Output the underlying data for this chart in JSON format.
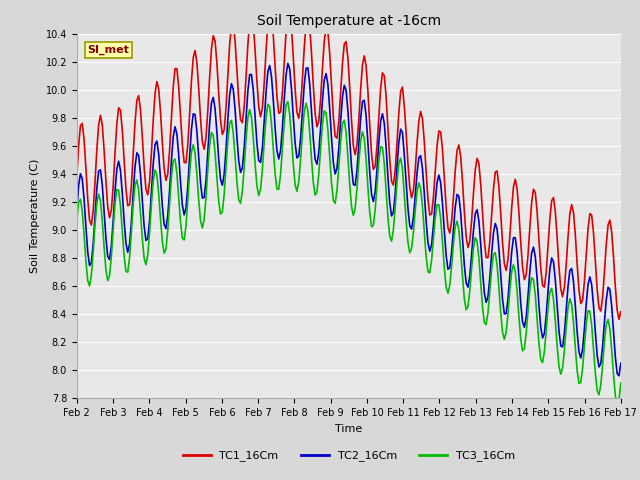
{
  "title": "Soil Temperature at -16cm",
  "xlabel": "Time",
  "ylabel": "Soil Temperature (C)",
  "ylim": [
    7.8,
    10.4
  ],
  "xlim": [
    0,
    15
  ],
  "x_tick_labels": [
    "Feb 2",
    "Feb 3",
    "Feb 4",
    "Feb 5",
    "Feb 6",
    "Feb 7",
    "Feb 8",
    "Feb 9",
    "Feb 10",
    "Feb 11",
    "Feb 12",
    "Feb 13",
    "Feb 14",
    "Feb 15",
    "Feb 16",
    "Feb 17"
  ],
  "background_color": "#d8d8d8",
  "plot_bg_color": "#e8e8e8",
  "grid_color": "#ffffff",
  "legend_label": "SI_met",
  "legend_bg": "#ffffaa",
  "legend_border": "#999900",
  "tc1_color": "#dd0000",
  "tc2_color": "#0000cc",
  "tc3_color": "#00bb00",
  "lw": 1.2,
  "title_fontsize": 10,
  "label_fontsize": 8,
  "tick_fontsize": 7,
  "legend_fontsize": 8
}
